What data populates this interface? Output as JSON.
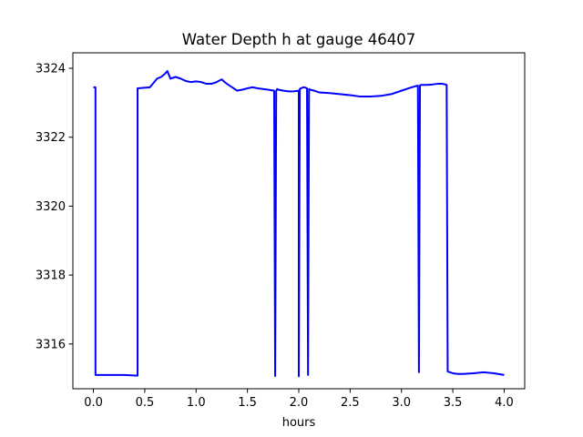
{
  "chart_data": {
    "type": "line",
    "title": "Water Depth h at gauge 46407",
    "xlabel": "hours",
    "ylabel": "",
    "xlim": [
      -0.2,
      4.2
    ],
    "ylim": [
      3314.7,
      3324.45
    ],
    "xticks": [
      0.0,
      0.5,
      1.0,
      1.5,
      2.0,
      2.5,
      3.0,
      3.5,
      4.0
    ],
    "xtick_labels": [
      "0.0",
      "0.5",
      "1.0",
      "1.5",
      "2.0",
      "2.5",
      "3.0",
      "3.5",
      "4.0"
    ],
    "yticks": [
      3316,
      3318,
      3320,
      3322,
      3324
    ],
    "ytick_labels": [
      "3316",
      "3318",
      "3320",
      "3322",
      "3324"
    ],
    "grid": false,
    "series": [
      {
        "color": "#0000ff",
        "x": [
          0.0,
          0.02,
          0.02,
          0.3,
          0.43,
          0.43,
          0.55,
          0.62,
          0.66,
          0.7,
          0.72,
          0.75,
          0.8,
          0.85,
          0.9,
          0.95,
          1.0,
          1.05,
          1.1,
          1.15,
          1.2,
          1.25,
          1.27,
          1.3,
          1.35,
          1.4,
          1.45,
          1.5,
          1.55,
          1.6,
          1.65,
          1.7,
          1.76,
          1.77,
          1.78,
          1.79,
          1.8,
          1.85,
          1.9,
          1.95,
          2.0,
          2.0,
          2.01,
          2.02,
          2.05,
          2.08,
          2.09,
          2.1,
          2.11,
          2.15,
          2.2,
          2.3,
          2.4,
          2.5,
          2.6,
          2.7,
          2.8,
          2.9,
          3.0,
          3.1,
          3.16,
          3.17,
          3.18,
          3.19,
          3.25,
          3.3,
          3.35,
          3.4,
          3.44,
          3.45,
          3.5,
          3.55,
          3.6,
          3.7,
          3.8,
          3.9,
          4.0
        ],
        "y": [
          3323.45,
          3323.45,
          3315.1,
          3315.1,
          3315.08,
          3323.42,
          3323.45,
          3323.7,
          3323.75,
          3323.85,
          3323.92,
          3323.7,
          3323.75,
          3323.7,
          3323.63,
          3323.6,
          3323.62,
          3323.6,
          3323.55,
          3323.55,
          3323.6,
          3323.68,
          3323.62,
          3323.55,
          3323.45,
          3323.35,
          3323.38,
          3323.42,
          3323.45,
          3323.42,
          3323.4,
          3323.38,
          3323.35,
          3315.07,
          3323.35,
          3323.4,
          3323.38,
          3323.35,
          3323.33,
          3323.33,
          3323.35,
          3315.06,
          3323.4,
          3323.42,
          3323.45,
          3323.42,
          3315.1,
          3323.4,
          3323.38,
          3323.35,
          3323.3,
          3323.28,
          3323.25,
          3323.22,
          3323.18,
          3323.18,
          3323.2,
          3323.25,
          3323.35,
          3323.45,
          3323.5,
          3315.18,
          3323.5,
          3323.52,
          3323.52,
          3323.53,
          3323.55,
          3323.55,
          3323.52,
          3315.2,
          3315.15,
          3315.13,
          3315.13,
          3315.15,
          3315.18,
          3315.15,
          3315.1
        ]
      }
    ]
  }
}
